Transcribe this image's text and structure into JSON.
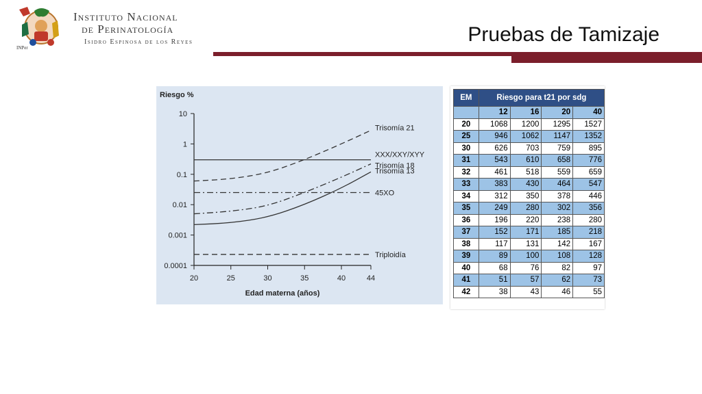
{
  "header": {
    "logo_caption": "INPer",
    "institution_line1": "Instituto Nacional",
    "institution_line2": "de Perinatología",
    "institution_line3": "Isidro Espinosa de los Reyes",
    "slide_title": "Pruebas de Tamizaje",
    "accent_color": "#7b1e2b"
  },
  "chart_data": [
    {
      "type": "line",
      "title": "",
      "ylabel": "Riesgo %",
      "xlabel": "Edad materna (años)",
      "x_ticks": [
        20,
        25,
        30,
        35,
        40,
        44
      ],
      "y_ticks": [
        "10",
        "1",
        "0.1",
        "0.01",
        "0.001",
        "0.0001"
      ],
      "y_scale": "log",
      "xlim": [
        20,
        44
      ],
      "ylim": [
        0.0001,
        10
      ],
      "grid": false,
      "background": "#dce6f2",
      "series": [
        {
          "name": "Trisomía 21",
          "style": "dashed",
          "x": [
            20,
            25,
            30,
            35,
            40,
            44
          ],
          "y": [
            0.06,
            0.07,
            0.11,
            0.3,
            1.0,
            2.8
          ]
        },
        {
          "name": "XXX/XXY/XYY",
          "style": "solid",
          "x": [
            20,
            44
          ],
          "y": [
            0.3,
            0.3
          ]
        },
        {
          "name": "Trisomía 18",
          "style": "dash-dot",
          "x": [
            20,
            25,
            30,
            35,
            40,
            44
          ],
          "y": [
            0.005,
            0.006,
            0.009,
            0.025,
            0.08,
            0.22
          ]
        },
        {
          "name": "Trisomía 13",
          "style": "solid",
          "x": [
            20,
            25,
            30,
            35,
            40,
            44
          ],
          "y": [
            0.0022,
            0.0025,
            0.0038,
            0.01,
            0.035,
            0.12
          ]
        },
        {
          "name": "45XO",
          "style": "dash-dot",
          "x": [
            20,
            44
          ],
          "y": [
            0.025,
            0.025
          ]
        },
        {
          "name": "Triploidía",
          "style": "dashed",
          "x": [
            20,
            44
          ],
          "y": [
            0.00023,
            0.00023
          ]
        }
      ]
    },
    {
      "type": "table",
      "header": [
        "EM",
        "Riesgo para t21 por sdg"
      ],
      "columns": [
        "",
        "12",
        "16",
        "20",
        "40"
      ],
      "rows": [
        [
          "20",
          "1068",
          "1200",
          "1295",
          "1527"
        ],
        [
          "25",
          "946",
          "1062",
          "1147",
          "1352"
        ],
        [
          "30",
          "626",
          "703",
          "759",
          "895"
        ],
        [
          "31",
          "543",
          "610",
          "658",
          "776"
        ],
        [
          "32",
          "461",
          "518",
          "559",
          "659"
        ],
        [
          "33",
          "383",
          "430",
          "464",
          "547"
        ],
        [
          "34",
          "312",
          "350",
          "378",
          "446"
        ],
        [
          "35",
          "249",
          "280",
          "302",
          "356"
        ],
        [
          "36",
          "196",
          "220",
          "238",
          "280"
        ],
        [
          "37",
          "152",
          "171",
          "185",
          "218"
        ],
        [
          "38",
          "117",
          "131",
          "142",
          "167"
        ],
        [
          "39",
          "89",
          "100",
          "108",
          "128"
        ],
        [
          "40",
          "68",
          "76",
          "82",
          "97"
        ],
        [
          "41",
          "51",
          "57",
          "62",
          "73"
        ],
        [
          "42",
          "38",
          "43",
          "46",
          "55"
        ]
      ],
      "header_color": "#2f4f86",
      "stripe_color": "#9dc3e6"
    }
  ]
}
